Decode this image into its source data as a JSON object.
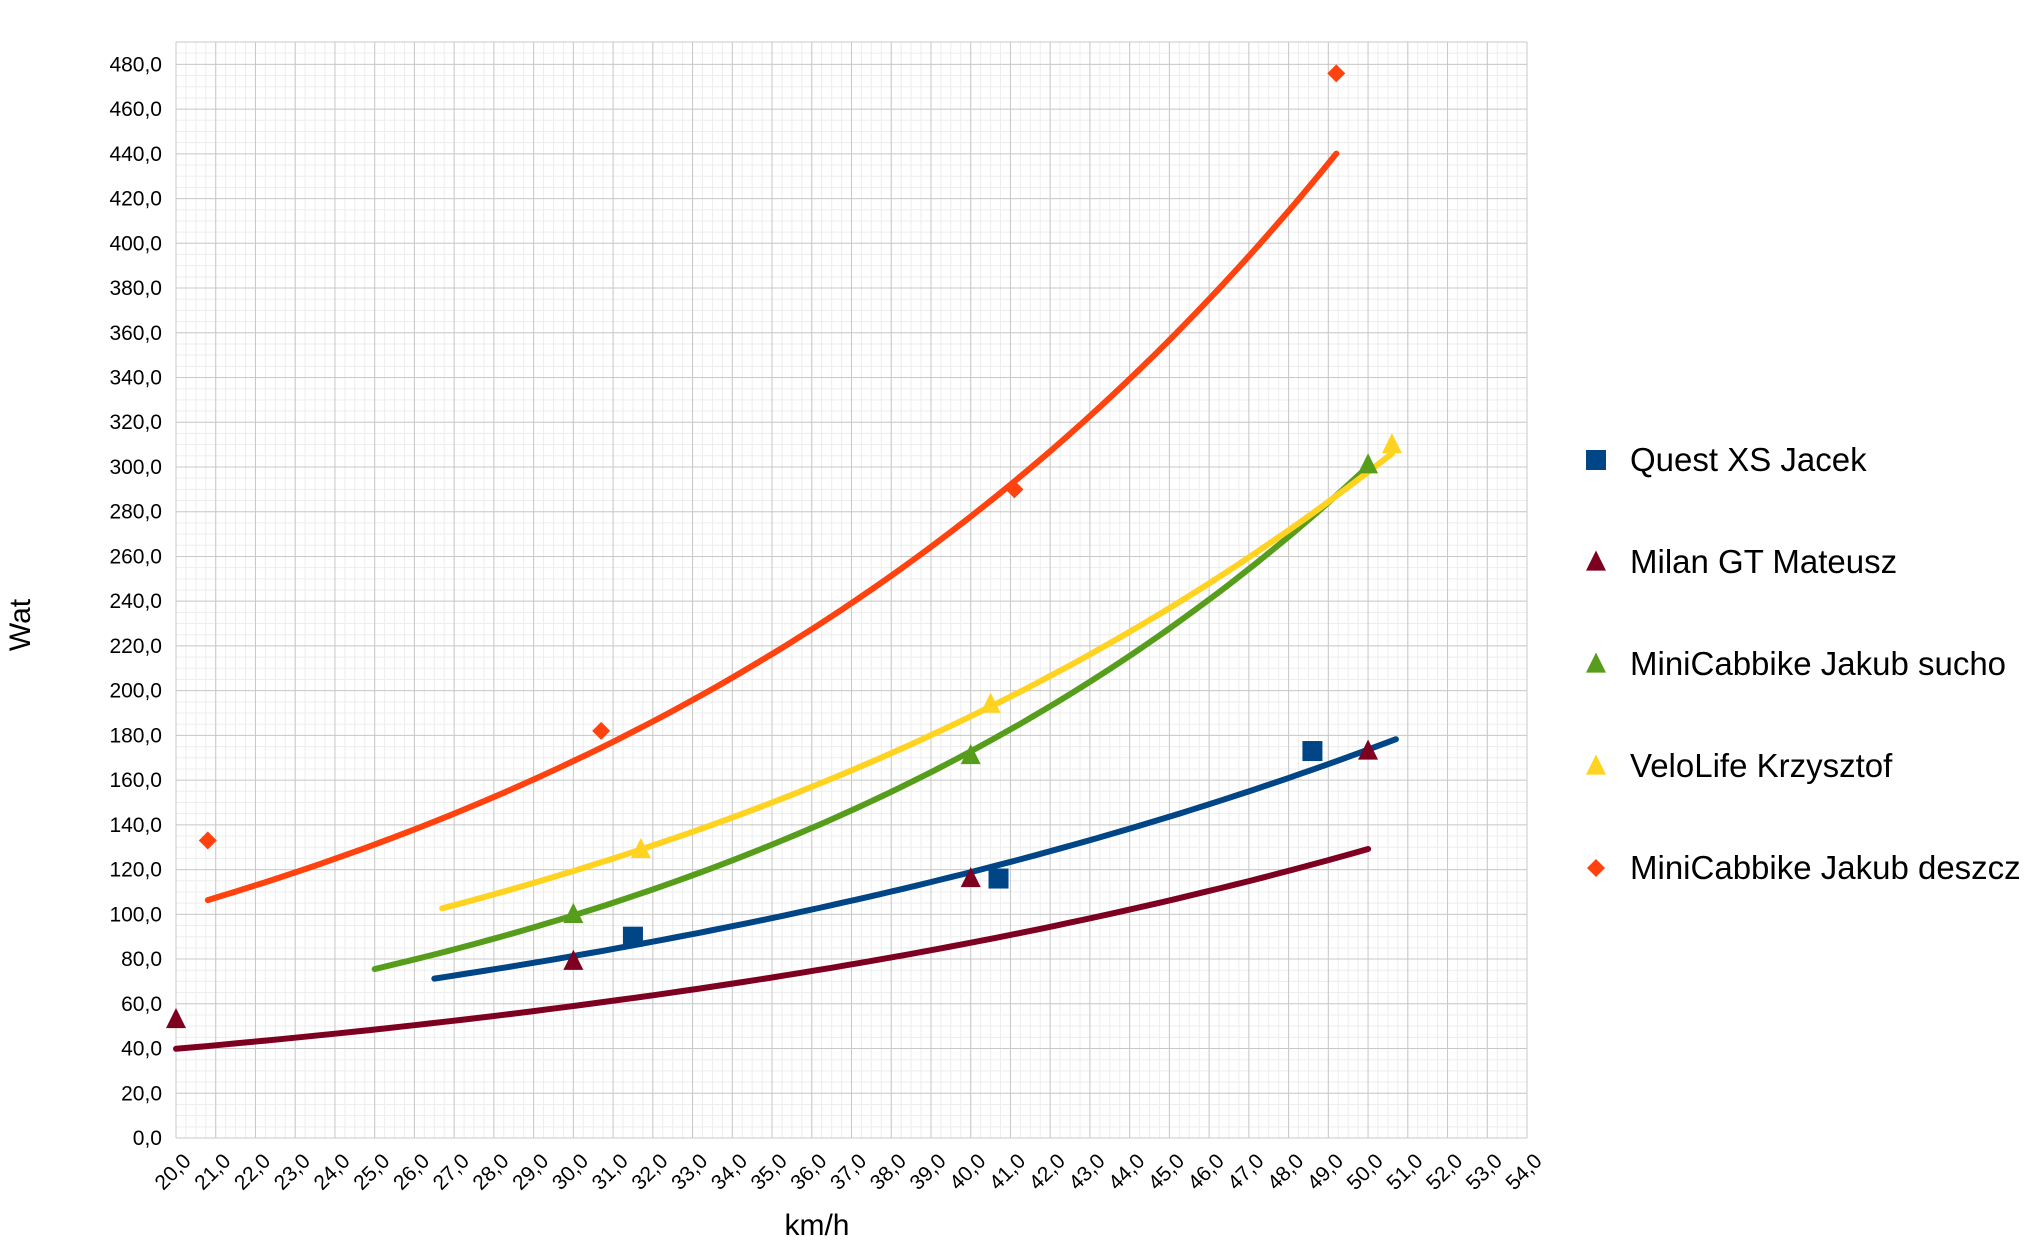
{
  "chart_data": {
    "type": "scatter",
    "xlabel": "km/h",
    "ylabel": "Wat",
    "xlim": [
      20,
      54
    ],
    "ylim": [
      0,
      490
    ],
    "x_ticks": [
      "20,0",
      "21,0",
      "22,0",
      "23,0",
      "24,0",
      "25,0",
      "26,0",
      "27,0",
      "28,0",
      "29,0",
      "30,0",
      "31,0",
      "32,0",
      "33,0",
      "34,0",
      "35,0",
      "36,0",
      "37,0",
      "38,0",
      "39,0",
      "40,0",
      "41,0",
      "42,0",
      "43,0",
      "44,0",
      "45,0",
      "46,0",
      "47,0",
      "48,0",
      "49,0",
      "50,0",
      "51,0",
      "52,0",
      "53,0",
      "54,0"
    ],
    "y_ticks": [
      "0,0",
      "20,0",
      "40,0",
      "60,0",
      "80,0",
      "100,0",
      "120,0",
      "140,0",
      "160,0",
      "180,0",
      "200,0",
      "220,0",
      "240,0",
      "260,0",
      "280,0",
      "300,0",
      "320,0",
      "340,0",
      "360,0",
      "380,0",
      "400,0",
      "420,0",
      "440,0",
      "460,0",
      "480,0"
    ],
    "grid": true,
    "trendline": "exponential",
    "legend_position": "right",
    "series": [
      {
        "name": "Quest XS Jacek",
        "color": "#004586",
        "marker": "square",
        "points": [
          [
            31.5,
            90
          ],
          [
            40.7,
            116
          ],
          [
            48.6,
            173
          ]
        ],
        "trend": {
          "a": 26.1,
          "b": 0.0379,
          "x_range": [
            26.5,
            50.7
          ]
        }
      },
      {
        "name": "Milan GT Mateusz",
        "color": "#7e0021",
        "marker": "triangle",
        "points": [
          [
            20.0,
            53
          ],
          [
            30.0,
            79
          ],
          [
            40.0,
            116
          ],
          [
            50.0,
            173
          ]
        ],
        "trend": {
          "a": 18.2,
          "b": 0.0392,
          "x_range": [
            20.0,
            50.0
          ]
        }
      },
      {
        "name": "MiniCabbike Jakub sucho",
        "color": "#579d1c",
        "marker": "triangle",
        "points": [
          [
            30.0,
            100
          ],
          [
            40.0,
            171
          ],
          [
            50.0,
            301
          ]
        ],
        "trend": {
          "a": 19.0,
          "b": 0.0552,
          "x_range": [
            25.0,
            50.0
          ]
        }
      },
      {
        "name": "VeloLife Krzysztof",
        "color": "#ffd320",
        "marker": "triangle",
        "points": [
          [
            31.7,
            129
          ],
          [
            40.5,
            194
          ],
          [
            50.6,
            310
          ]
        ],
        "trend": {
          "a": 30.3,
          "b": 0.0457,
          "x_range": [
            26.7,
            50.6
          ]
        }
      },
      {
        "name": "MiniCabbike Jakub deszcz",
        "color": "#ff420e",
        "marker": "diamond",
        "points": [
          [
            20.8,
            133
          ],
          [
            30.7,
            182
          ],
          [
            41.1,
            290
          ],
          [
            49.2,
            476
          ]
        ],
        "trend": {
          "a": 37.6,
          "b": 0.05,
          "x_range": [
            20.8,
            49.2
          ]
        }
      }
    ]
  }
}
